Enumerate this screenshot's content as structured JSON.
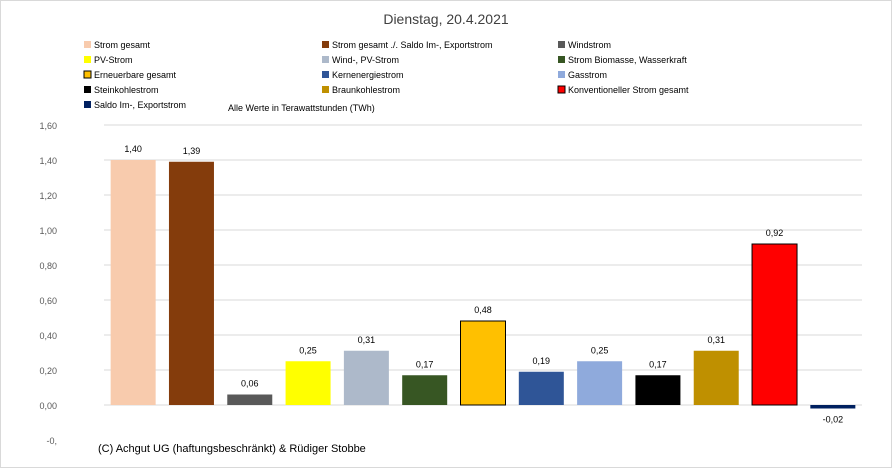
{
  "chart_data": {
    "type": "bar",
    "title": "Dienstag, 20.4.2021",
    "subtitle": "Alle Werte in Terawattstunden (TWh)",
    "footer": "(C) Achgut UG (haftungsbeschränkt) & Rüdiger Stobbe",
    "ylim": [
      -0.2,
      1.6
    ],
    "yticks": [
      "1,60",
      "1,40",
      "1,20",
      "1,00",
      "0,80",
      "0,60",
      "0,40",
      "0,20",
      "0,00",
      "-0,"
    ],
    "ytick_values": [
      1.6,
      1.4,
      1.2,
      1.0,
      0.8,
      0.6,
      0.4,
      0.2,
      0.0,
      -0.2
    ],
    "grid": true,
    "legend_position": "top",
    "series": [
      {
        "name": "Strom gesamt",
        "value": 1.4,
        "label": "1,40",
        "color": "#F8CBAD",
        "outlined": false
      },
      {
        "name": "Strom gesamt ./. Saldo Im-, Exportstrom",
        "value": 1.39,
        "label": "1,39",
        "color": "#843C0C",
        "outlined": false
      },
      {
        "name": "Windstrom",
        "value": 0.06,
        "label": "0,06",
        "color": "#595959",
        "outlined": false
      },
      {
        "name": "PV-Strom",
        "value": 0.25,
        "label": "0,25",
        "color": "#FFFF00",
        "outlined": false
      },
      {
        "name": "Wind-, PV-Strom",
        "value": 0.31,
        "label": "0,31",
        "color": "#ADB9CA",
        "outlined": false
      },
      {
        "name": "Strom Biomasse, Wasserkraft",
        "value": 0.17,
        "label": "0,17",
        "color": "#375623",
        "outlined": false
      },
      {
        "name": "Erneuerbare gesamt",
        "value": 0.48,
        "label": "0,48",
        "color": "#FFC000",
        "outlined": true
      },
      {
        "name": "Kernenergiestrom",
        "value": 0.19,
        "label": "0,19",
        "color": "#2F5597",
        "outlined": false
      },
      {
        "name": "Gasstrom",
        "value": 0.25,
        "label": "0,25",
        "color": "#8FAADC",
        "outlined": false
      },
      {
        "name": "Steinkohlestrom",
        "value": 0.17,
        "label": "0,17",
        "color": "#000000",
        "outlined": false
      },
      {
        "name": "Braunkohlestrom",
        "value": 0.31,
        "label": "0,31",
        "color": "#BF9000",
        "outlined": false
      },
      {
        "name": "Konventioneller Strom gesamt",
        "value": 0.92,
        "label": "0,92",
        "color": "#FF0000",
        "outlined": true
      },
      {
        "name": "Saldo Im-, Exportstrom",
        "value": -0.02,
        "label": "-0,02",
        "color": "#002060",
        "outlined": false
      }
    ]
  }
}
